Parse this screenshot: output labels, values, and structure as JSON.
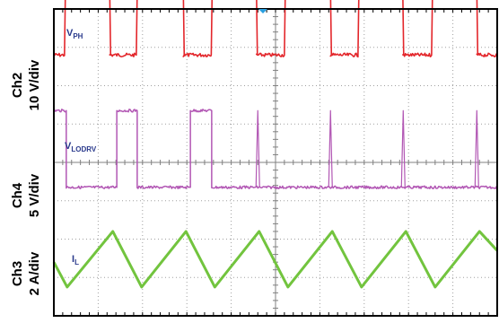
{
  "chart_data": {
    "type": "line",
    "title": "",
    "colors": {
      "ch2": "#e3262b",
      "ch4": "#b257b4",
      "ch3": "#72c43e",
      "label": "#2a3a8c",
      "frame": "#000000",
      "grid": "#a0a0a0",
      "trigger": "#2aa0e0"
    },
    "grid": {
      "divisions_x": 10,
      "divisions_y": 8,
      "style": "dotted",
      "center_crosshair": true
    },
    "channels": [
      {
        "id": "ch2",
        "axis_label_line1": "Ch2",
        "axis_label_line2": "10 V/div",
        "signal_label_main": "V",
        "signal_label_sub": "PH",
        "waveform": "square",
        "levels_div": {
          "low": 6.8,
          "high": 10.1
        },
        "edges_div": [
          {
            "x": 0.24,
            "to": "high"
          },
          {
            "x": 1.24,
            "to": "low"
          },
          {
            "x": 1.86,
            "to": "high"
          },
          {
            "x": 2.9,
            "to": "low"
          },
          {
            "x": 3.55,
            "to": "high"
          },
          {
            "x": 4.55,
            "to": "low"
          },
          {
            "x": 5.2,
            "to": "high"
          },
          {
            "x": 6.22,
            "to": "low"
          },
          {
            "x": 6.86,
            "to": "high"
          },
          {
            "x": 7.85,
            "to": "low"
          },
          {
            "x": 8.52,
            "to": "high"
          },
          {
            "x": 9.52,
            "to": "low"
          }
        ],
        "start_level": "low"
      },
      {
        "id": "ch4",
        "axis_label_line1": "Ch4",
        "axis_label_line2": "5 V/div",
        "signal_label_main": "V",
        "signal_label_sub": "LODRV",
        "waveform": "pulse",
        "levels_div": {
          "low": 3.35,
          "high": 5.35
        },
        "high_intervals_div": [
          [
            -0.05,
            0.27
          ],
          [
            1.42,
            1.88
          ],
          [
            3.08,
            3.56
          ]
        ],
        "spikes_div": [
          4.6,
          6.24,
          7.88,
          9.54
        ]
      },
      {
        "id": "ch3",
        "axis_label_line1": "Ch3",
        "axis_label_line2": "2 A/div",
        "signal_label_main": "I",
        "signal_label_sub": "L",
        "waveform": "triangle",
        "points_div": [
          [
            0.0,
            1.4
          ],
          [
            0.3,
            0.75
          ],
          [
            1.33,
            2.2
          ],
          [
            1.98,
            0.75
          ],
          [
            2.98,
            2.2
          ],
          [
            3.63,
            0.75
          ],
          [
            4.63,
            2.2
          ],
          [
            5.28,
            0.75
          ],
          [
            6.28,
            2.2
          ],
          [
            6.94,
            0.75
          ],
          [
            7.94,
            2.2
          ],
          [
            8.6,
            0.75
          ],
          [
            9.6,
            2.2
          ],
          [
            10.0,
            1.7
          ]
        ]
      }
    ]
  }
}
